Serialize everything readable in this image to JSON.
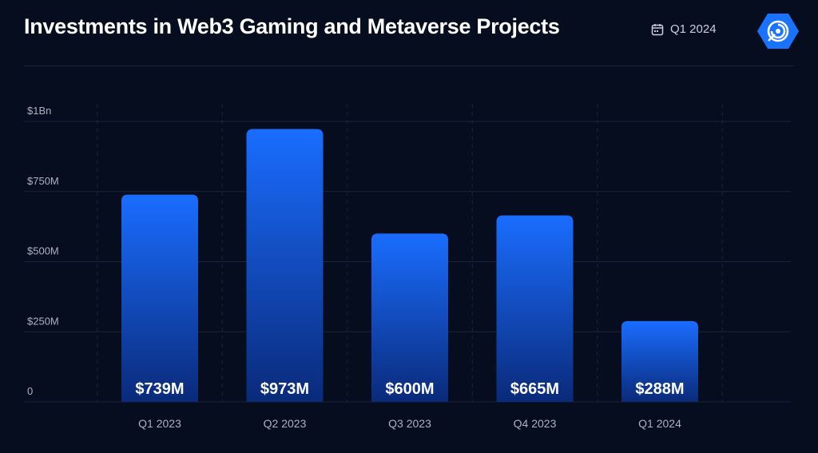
{
  "header": {
    "title": "Investments in Web3 Gaming and Metaverse Projects",
    "period": "Q1 2024",
    "calendar_icon": "calendar-icon",
    "logo_icon": "radar-logo-icon"
  },
  "colors": {
    "background": "#060d1f",
    "bar_top": "#1a6dff",
    "bar_bottom": "#0a2a7a",
    "gridline": "#1c2437",
    "text_muted": "#aab2c4",
    "accent": "#1a73ff"
  },
  "chart_data": {
    "type": "bar",
    "categories": [
      "Q1 2023",
      "Q2 2023",
      "Q3 2023",
      "Q4 2023",
      "Q1 2024"
    ],
    "values": [
      739,
      973,
      600,
      665,
      288
    ],
    "data_labels": [
      "$739M",
      "$973M",
      "$600M",
      "$665M",
      "$288M"
    ],
    "ylim": [
      0,
      1000
    ],
    "yticks": [
      0,
      250,
      500,
      750,
      1000
    ],
    "ytick_labels": [
      "0",
      "$250M",
      "$500M",
      "$750M",
      "$1Bn"
    ],
    "xlabel": "",
    "ylabel": "",
    "grid": true
  }
}
